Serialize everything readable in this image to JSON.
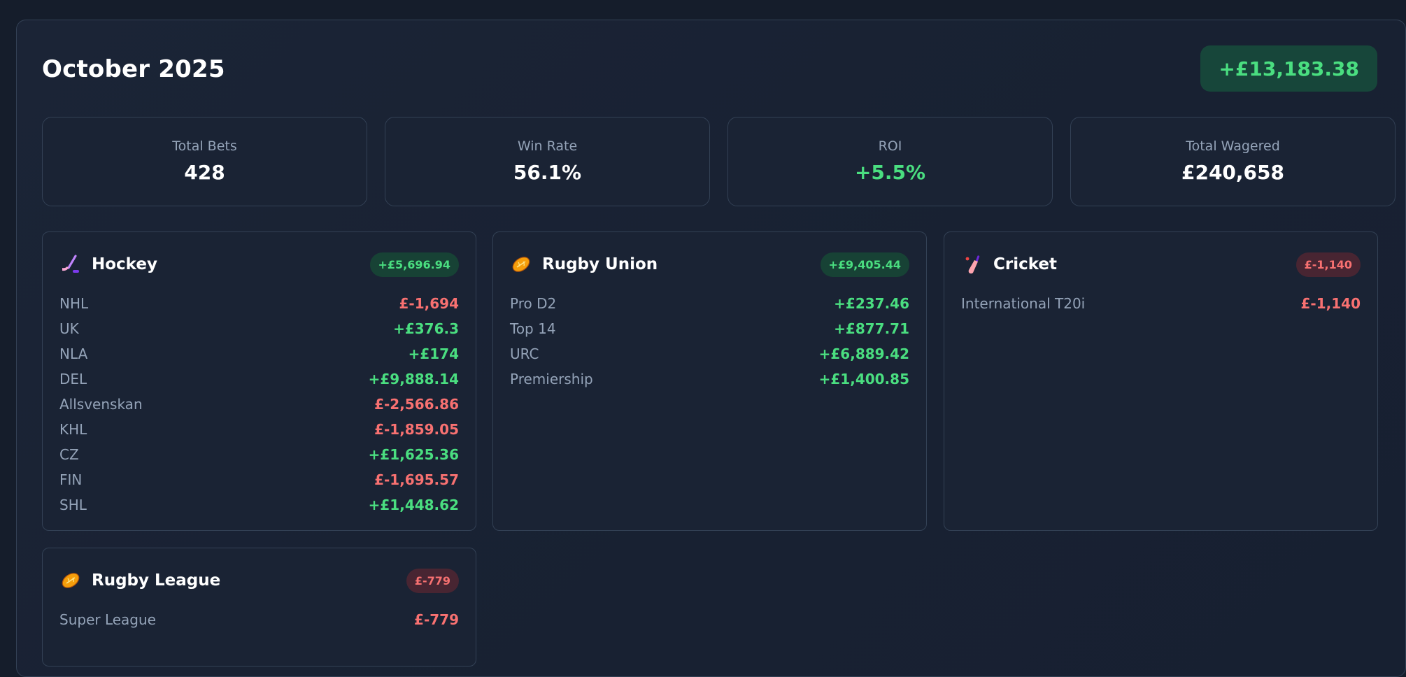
{
  "header": {
    "title": "October 2025",
    "total_pl": "+£13,183.38"
  },
  "stats": [
    {
      "label": "Total Bets",
      "value": "428"
    },
    {
      "label": "Win Rate",
      "value": "56.1%"
    },
    {
      "label": "ROI",
      "value": "+5.5%"
    },
    {
      "label": "Total Wagered",
      "value": "£240,658"
    }
  ],
  "sports": {
    "hockey": {
      "name": "Hockey",
      "icon": "hockey-stick-icon",
      "total": "+£5,696.94",
      "leagues": [
        {
          "name": "NHL",
          "value": "£-1,694"
        },
        {
          "name": "UK",
          "value": "+£376.3"
        },
        {
          "name": "NLA",
          "value": "+£174"
        },
        {
          "name": "DEL",
          "value": "+£9,888.14"
        },
        {
          "name": "Allsvenskan",
          "value": "£-2,566.86"
        },
        {
          "name": "KHL",
          "value": "£-1,859.05"
        },
        {
          "name": "CZ",
          "value": "+£1,625.36"
        },
        {
          "name": "FIN",
          "value": "£-1,695.57"
        },
        {
          "name": "SHL",
          "value": "+£1,448.62"
        }
      ]
    },
    "rugby_union": {
      "name": "Rugby Union",
      "icon": "rugby-ball-icon",
      "total": "+£9,405.44",
      "leagues": [
        {
          "name": "Pro D2",
          "value": "+£237.46"
        },
        {
          "name": "Top 14",
          "value": "+£877.71"
        },
        {
          "name": "URC",
          "value": "+£6,889.42"
        },
        {
          "name": "Premiership",
          "value": "+£1,400.85"
        }
      ]
    },
    "cricket": {
      "name": "Cricket",
      "icon": "cricket-bat-icon",
      "total": "£-1,140",
      "leagues": [
        {
          "name": "International T20i",
          "value": "£-1,140"
        }
      ]
    },
    "rugby_league": {
      "name": "Rugby League",
      "icon": "rugby-ball-icon",
      "total": "£-779",
      "leagues": [
        {
          "name": "Super League",
          "value": "£-779"
        }
      ]
    }
  },
  "colors": {
    "background": "#151d2b",
    "positive": "#4ade80",
    "negative": "#f87171",
    "muted": "#94a3b8"
  }
}
